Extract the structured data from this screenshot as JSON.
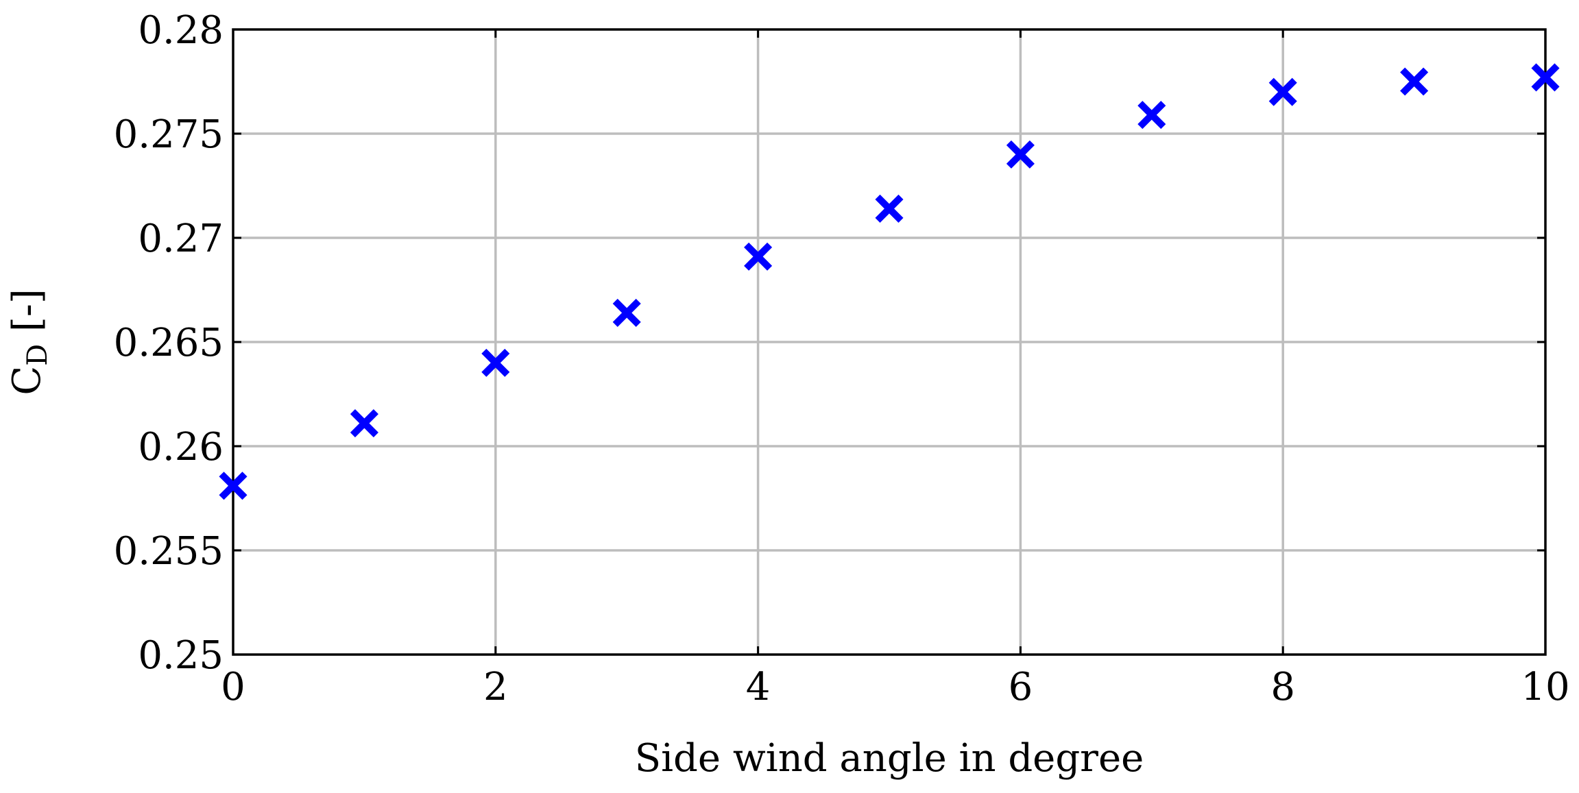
{
  "chart_data": {
    "type": "scatter",
    "title": "",
    "xlabel": "Side wind angle in degree",
    "ylabel": "C_D [-]",
    "ylabel_main": "C",
    "ylabel_sub": "D",
    "ylabel_suffix": " [-]",
    "xlim": [
      0,
      10
    ],
    "ylim": [
      0.25,
      0.28
    ],
    "xticks": [
      0,
      2,
      4,
      6,
      8,
      10
    ],
    "xtick_labels": [
      "0",
      "2",
      "4",
      "6",
      "8",
      "10"
    ],
    "yticks": [
      0.25,
      0.255,
      0.26,
      0.265,
      0.27,
      0.275,
      0.28
    ],
    "ytick_labels": [
      "0.25",
      "0.255",
      "0.26",
      "0.265",
      "0.27",
      "0.275",
      "0.28"
    ],
    "grid": true,
    "legend": "none",
    "marker": "x-cross",
    "color": "#0000ff",
    "series": [
      {
        "x": [
          0,
          1,
          2,
          3,
          4,
          5,
          6,
          7,
          8,
          9,
          10
        ],
        "y": [
          0.2581,
          0.2611,
          0.264,
          0.2664,
          0.2691,
          0.2714,
          0.274,
          0.2759,
          0.277,
          0.2775,
          0.2777
        ]
      }
    ]
  }
}
